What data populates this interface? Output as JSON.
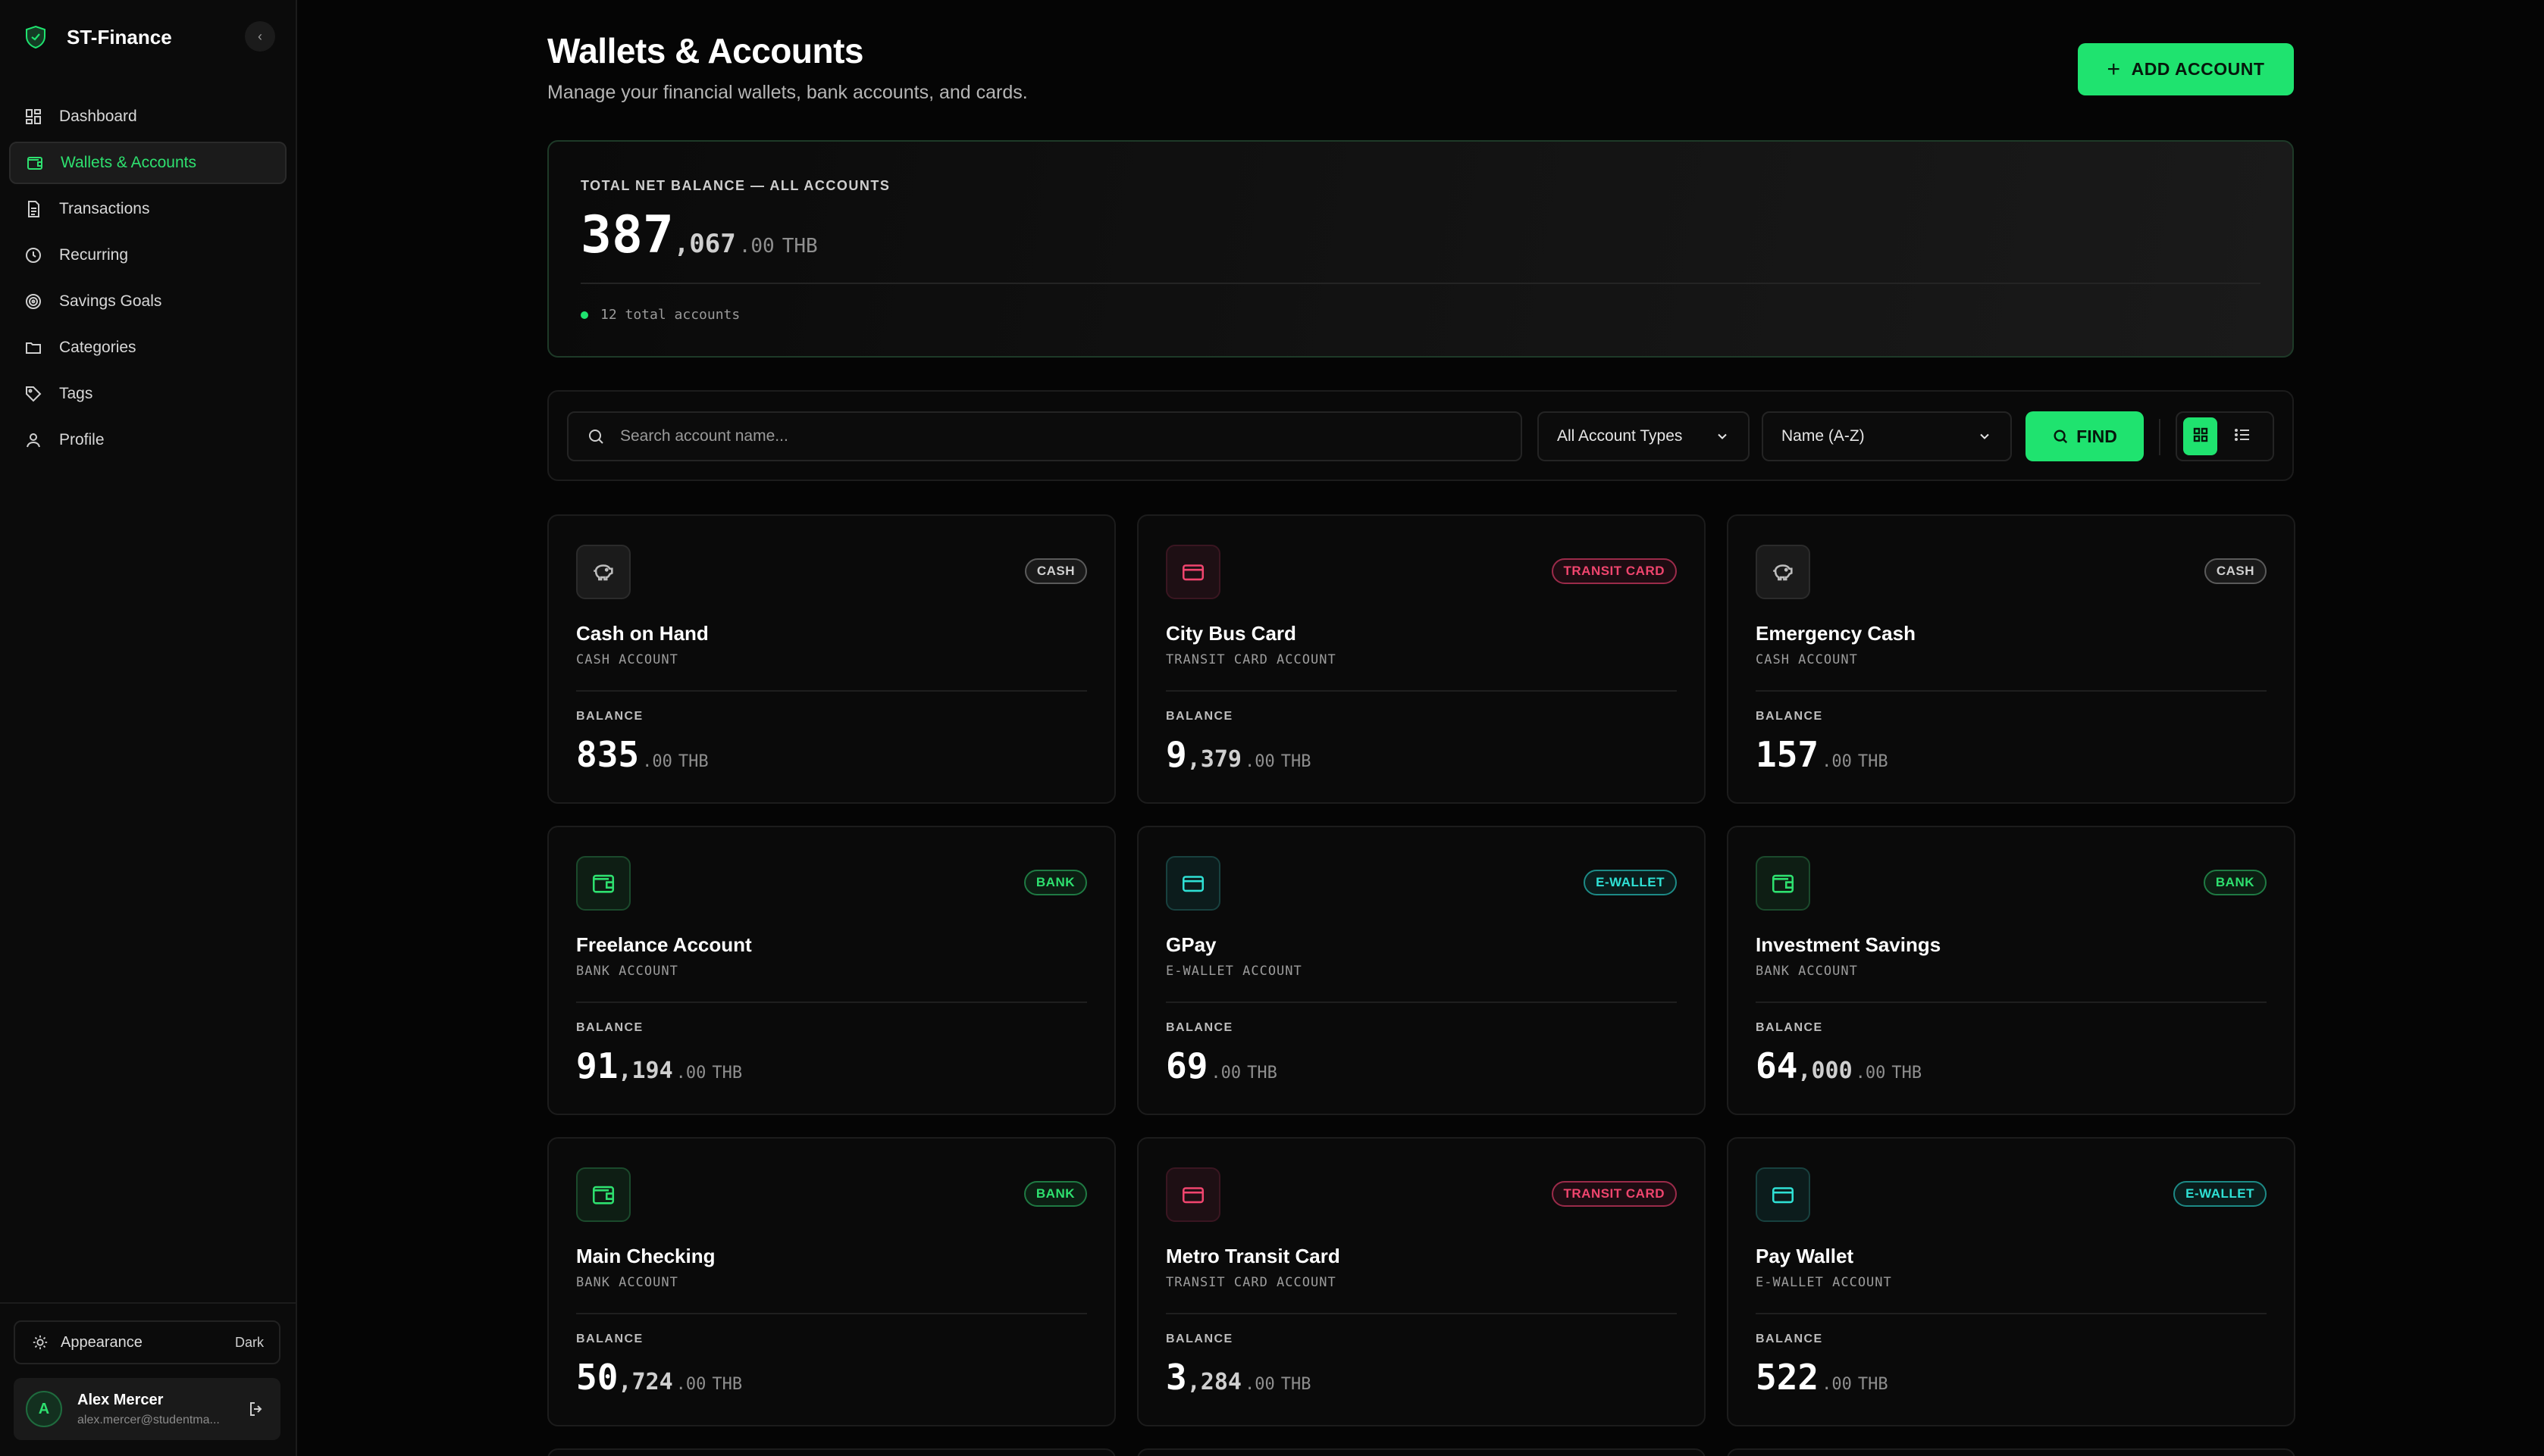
{
  "app": {
    "name": "ST-Finance",
    "collapse_symbol": "‹"
  },
  "sidebar": {
    "items": [
      {
        "label": "Dashboard",
        "icon": "dashboard-icon"
      },
      {
        "label": "Wallets & Accounts",
        "icon": "wallet-icon",
        "active": true
      },
      {
        "label": "Transactions",
        "icon": "document-icon"
      },
      {
        "label": "Recurring",
        "icon": "clock-icon"
      },
      {
        "label": "Savings Goals",
        "icon": "target-icon"
      },
      {
        "label": "Categories",
        "icon": "folder-icon"
      },
      {
        "label": "Tags",
        "icon": "tag-icon"
      },
      {
        "label": "Profile",
        "icon": "user-icon"
      }
    ],
    "appearance": {
      "label": "Appearance",
      "value": "Dark"
    },
    "user": {
      "initial": "A",
      "name": "Alex Mercer",
      "email": "alex.mercer@studentma..."
    }
  },
  "header": {
    "title": "Wallets & Accounts",
    "subtitle": "Manage your financial wallets, bank accounts, and cards.",
    "add_button": "ADD ACCOUNT"
  },
  "summary": {
    "label": "TOTAL NET BALANCE — ALL ACCOUNTS",
    "amount_int": "387",
    "amount_mid": ",067",
    "amount_dec": ".00",
    "currency": "THB",
    "count_text": "12 total accounts"
  },
  "filters": {
    "search_placeholder": "Search account name...",
    "type_value": "All Account Types",
    "sort_value": "Name (A-Z)",
    "find_label": "FIND"
  },
  "balance_label": "BALANCE",
  "accounts": [
    {
      "name": "Cash on Hand",
      "sub": "CASH ACCOUNT",
      "badge": "CASH",
      "type": "cash",
      "int": "835",
      "mid": "",
      "dec": ".00",
      "cur": "THB"
    },
    {
      "name": "City Bus Card",
      "sub": "TRANSIT CARD ACCOUNT",
      "badge": "TRANSIT CARD",
      "type": "transit",
      "int": "9",
      "mid": ",379",
      "dec": ".00",
      "cur": "THB"
    },
    {
      "name": "Emergency Cash",
      "sub": "CASH ACCOUNT",
      "badge": "CASH",
      "type": "cash",
      "int": "157",
      "mid": "",
      "dec": ".00",
      "cur": "THB"
    },
    {
      "name": "Freelance Account",
      "sub": "BANK ACCOUNT",
      "badge": "BANK",
      "type": "bank",
      "int": "91",
      "mid": ",194",
      "dec": ".00",
      "cur": "THB"
    },
    {
      "name": "GPay",
      "sub": "E-WALLET ACCOUNT",
      "badge": "E-WALLET",
      "type": "ewallet",
      "int": "69",
      "mid": "",
      "dec": ".00",
      "cur": "THB"
    },
    {
      "name": "Investment Savings",
      "sub": "BANK ACCOUNT",
      "badge": "BANK",
      "type": "bank",
      "int": "64",
      "mid": ",000",
      "dec": ".00",
      "cur": "THB"
    },
    {
      "name": "Main Checking",
      "sub": "BANK ACCOUNT",
      "badge": "BANK",
      "type": "bank",
      "int": "50",
      "mid": ",724",
      "dec": ".00",
      "cur": "THB"
    },
    {
      "name": "Metro Transit Card",
      "sub": "TRANSIT CARD ACCOUNT",
      "badge": "TRANSIT CARD",
      "type": "transit",
      "int": "3",
      "mid": ",284",
      "dec": ".00",
      "cur": "THB"
    },
    {
      "name": "Pay Wallet",
      "sub": "E-WALLET ACCOUNT",
      "badge": "E-WALLET",
      "type": "ewallet",
      "int": "522",
      "mid": "",
      "dec": ".00",
      "cur": "THB"
    }
  ],
  "colors": {
    "accent": "#1fe36f",
    "transit": "#f0456e",
    "ewallet": "#2fe0d4",
    "background": "#050505"
  }
}
